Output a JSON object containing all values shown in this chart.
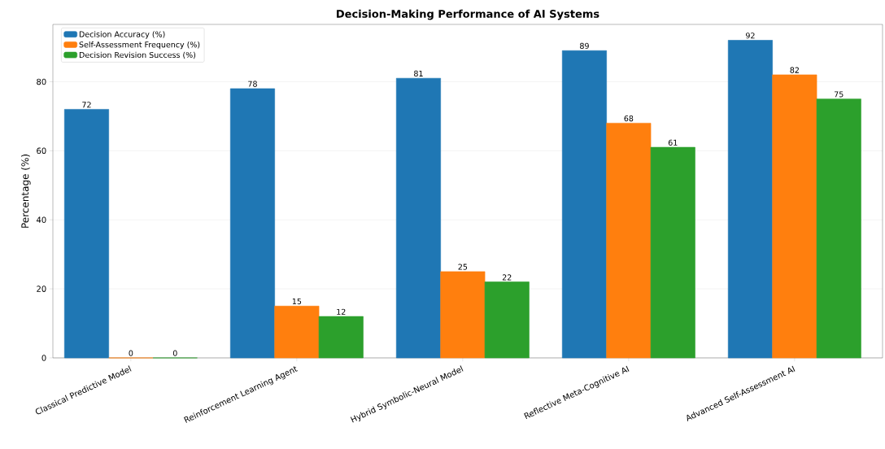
{
  "chart_data": {
    "type": "bar",
    "title": "Decision-Making Performance of AI Systems",
    "ylabel": "Percentage (%)",
    "categories": [
      "Classical Predictive Model",
      "Reinforcement Learning Agent",
      "Hybrid Symbolic-Neural Model",
      "Reflective Meta-Cognitive AI",
      "Advanced Self-Assessment AI"
    ],
    "series": [
      {
        "name": "Decision Accuracy (%)",
        "color": "#1f77b4",
        "values": [
          72,
          78,
          81,
          89,
          92
        ]
      },
      {
        "name": "Self-Assessment Frequency (%)",
        "color": "#ff7f0e",
        "values": [
          0,
          15,
          25,
          68,
          82
        ]
      },
      {
        "name": "Decision Revision Success (%)",
        "color": "#2ca02c",
        "values": [
          0,
          12,
          22,
          61,
          75
        ]
      }
    ],
    "ylim": [
      0,
      96.6
    ],
    "yticks": [
      0,
      20,
      40,
      60,
      80
    ],
    "grid": "y",
    "legend": "top left",
    "data_labels": true
  }
}
